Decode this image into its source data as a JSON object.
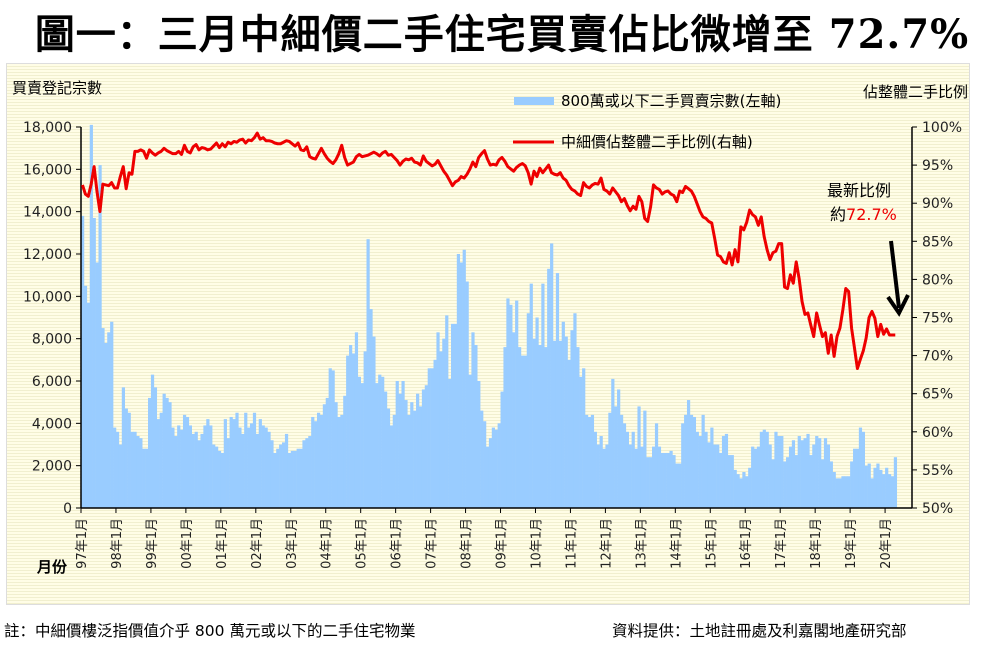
{
  "title": "圖一：三月中細價二手住宅買賣佔比微增至 72.7%",
  "footer": {
    "note": "註：中細價樓泛指價值介乎 800 萬元或以下的二手住宅物業",
    "source": "資料提供：土地註冊處及利嘉閣地產研究部"
  },
  "annotation": {
    "line1": "最新比例",
    "prefix": "約",
    "value": "72.7%"
  },
  "colors": {
    "bars": "#99ccff",
    "line": "#ee0000",
    "annotation_value": "#ee0000"
  },
  "chart_data": {
    "type": "bar+line",
    "left_axis_title": "買賣登記宗數",
    "right_axis_title": "佔整體二手比例",
    "x_axis_title": "月份",
    "left_ylim": [
      0,
      18000
    ],
    "right_ylim": [
      50,
      100
    ],
    "left_ticks": [
      "0",
      "2,000",
      "4,000",
      "6,000",
      "8,000",
      "10,000",
      "12,000",
      "14,000",
      "16,000",
      "18,000"
    ],
    "right_ticks": [
      "50%",
      "55%",
      "60%",
      "65%",
      "70%",
      "75%",
      "80%",
      "85%",
      "90%",
      "95%",
      "100%"
    ],
    "x_tick_labels": [
      "97年1月",
      "98年1月",
      "99年1月",
      "00年1月",
      "01年1月",
      "02年1月",
      "03年1月",
      "04年1月",
      "05年1月",
      "06年1月",
      "07年1月",
      "08年1月",
      "09年1月",
      "10年1月",
      "11年1月",
      "12年1月",
      "13年1月",
      "14年1月",
      "15年1月",
      "16年1月",
      "17年1月",
      "18年1月",
      "19年1月",
      "20年1月"
    ],
    "x_start": "1997-01",
    "x_end": "2020-04",
    "legend_position": "top-center",
    "series": [
      {
        "name": "800萬或以下二手買賣宗數(左軸)",
        "type": "bar",
        "axis": "left",
        "unit": "thousand",
        "values": [
          13.8,
          10.5,
          9.7,
          18.1,
          13.7,
          11.6,
          16.2,
          8.5,
          7.8,
          8.3,
          8.8,
          3.8,
          3.6,
          3.0,
          5.7,
          4.7,
          4.5,
          3.6,
          3.6,
          3.4,
          3.3,
          2.8,
          2.8,
          5.2,
          6.3,
          5.7,
          4.2,
          4.5,
          5.4,
          5.2,
          5.0,
          3.8,
          3.4,
          3.9,
          3.7,
          4.4,
          4.3,
          3.9,
          3.5,
          3.6,
          3.2,
          3.5,
          3.9,
          4.2,
          3.9,
          3.0,
          2.9,
          2.7,
          2.6,
          4.2,
          3.3,
          4.3,
          4.2,
          4.5,
          3.8,
          3.5,
          4.5,
          3.8,
          4.0,
          4.5,
          3.5,
          4.2,
          3.9,
          3.8,
          3.6,
          3.2,
          2.6,
          2.8,
          3.0,
          3.1,
          3.5,
          2.6,
          2.7,
          2.7,
          2.8,
          2.8,
          3.2,
          3.3,
          3.4,
          4.3,
          4.1,
          4.5,
          4.4,
          4.9,
          5.2,
          6.6,
          6.5,
          5.0,
          4.3,
          4.4,
          5.3,
          7.2,
          7.7,
          7.3,
          8.3,
          6.2,
          5.9,
          7.4,
          12.7,
          9.4,
          8.1,
          5.9,
          6.3,
          6.2,
          5.5,
          4.7,
          3.9,
          4.4,
          6.0,
          5.4,
          6.0,
          5.1,
          4.4,
          5.0,
          4.6,
          5.4,
          4.8,
          5.6,
          5.8,
          6.6,
          6.6,
          7.0,
          8.3,
          7.4,
          8.0,
          9.1,
          6.1,
          8.7,
          8.7,
          12.0,
          11.6,
          12.2,
          10.7,
          6.3,
          8.3,
          7.7,
          6.0,
          4.6,
          4.1,
          2.9,
          3.3,
          3.8,
          3.7,
          4.0,
          5.5,
          7.6,
          9.9,
          9.6,
          8.3,
          9.8,
          7.6,
          7.2,
          7.2,
          9.2,
          10.6,
          8.0,
          9.0,
          7.7,
          10.6,
          7.6,
          11.3,
          12.5,
          7.9,
          11.1,
          7.9,
          8.8,
          8.1,
          7.0,
          8.4,
          9.2,
          7.6,
          6.2,
          6.6,
          4.4,
          4.3,
          4.4,
          3.6,
          3.0,
          3.4,
          2.8,
          3.0,
          4.5,
          6.1,
          4.8,
          5.6,
          4.4,
          4.0,
          3.6,
          3.0,
          3.6,
          2.8,
          4.8,
          2.9,
          4.6,
          2.4,
          2.4,
          2.9,
          4.0,
          2.9,
          2.6,
          2.6,
          2.6,
          2.7,
          2.5,
          2.1,
          2.1,
          4.0,
          4.4,
          5.1,
          4.4,
          4.3,
          3.6,
          3.4,
          4.4,
          3.6,
          3.1,
          3.8,
          3.0,
          3.0,
          2.6,
          3.4,
          3.5,
          2.5,
          2.5,
          1.8,
          1.6,
          1.4,
          1.7,
          1.5,
          1.9,
          2.9,
          2.8,
          2.9,
          3.6,
          3.7,
          3.6,
          3.0,
          2.3,
          3.6,
          3.4,
          3.4,
          2.2,
          2.4,
          2.9,
          3.2,
          2.5,
          3.4,
          3.2,
          3.3,
          3.5,
          2.5,
          3.0,
          3.4,
          3.3,
          2.3,
          3.3,
          3.0,
          2.2,
          1.7,
          1.4,
          1.4,
          1.5,
          1.5,
          1.5,
          2.2,
          2.8,
          2.8,
          3.8,
          3.6,
          2.0,
          2.1,
          1.4,
          1.9,
          2.1,
          1.8,
          1.6,
          1.9,
          1.6,
          1.5,
          2.4
        ]
      },
      {
        "name": "中細價佔整體二手比例(右軸)",
        "type": "line",
        "axis": "right",
        "unit": "percent",
        "values": [
          92.4,
          91.2,
          90.9,
          92.5,
          94.8,
          91.5,
          88.9,
          92.5,
          92.4,
          92.3,
          92.7,
          92.0,
          92.0,
          93.5,
          94.8,
          91.9,
          94.0,
          93.8,
          96.8,
          96.8,
          97.0,
          96.8,
          95.9,
          97.0,
          96.6,
          96.3,
          96.6,
          96.8,
          97.2,
          96.9,
          96.7,
          96.5,
          96.5,
          96.8,
          96.4,
          97.6,
          96.8,
          96.6,
          97.4,
          97.7,
          97.0,
          97.3,
          97.2,
          97.0,
          97.1,
          97.5,
          97.9,
          97.3,
          97.8,
          97.4,
          98.0,
          97.8,
          98.1,
          98.0,
          98.3,
          98.4,
          97.9,
          98.3,
          98.2,
          98.6,
          99.2,
          98.4,
          98.6,
          98.2,
          98.2,
          98.1,
          97.9,
          97.8,
          97.8,
          98.0,
          98.2,
          98.1,
          97.8,
          97.5,
          97.9,
          97.0,
          96.9,
          97.4,
          96.1,
          95.9,
          95.8,
          96.5,
          97.2,
          96.5,
          95.9,
          95.5,
          95.2,
          95.7,
          96.5,
          97.6,
          96.0,
          95.0,
          95.2,
          95.4,
          96.1,
          96.4,
          96.1,
          96.2,
          96.3,
          96.5,
          96.7,
          96.5,
          96.2,
          96.6,
          96.8,
          96.3,
          96.4,
          96.0,
          95.6,
          95.0,
          95.5,
          95.8,
          95.7,
          95.9,
          95.4,
          95.3,
          95.0,
          96.2,
          95.5,
          95.2,
          94.9,
          95.1,
          95.6,
          94.9,
          94.2,
          93.7,
          93.0,
          92.3,
          92.8,
          93.0,
          93.5,
          93.3,
          93.8,
          94.5,
          95.4,
          94.8,
          96.0,
          96.5,
          96.9,
          95.8,
          95.0,
          95.1,
          95.0,
          95.7,
          96.0,
          95.5,
          94.8,
          94.5,
          94.2,
          94.7,
          95.0,
          95.2,
          94.9,
          94.0,
          92.5,
          94.2,
          93.5,
          94.6,
          94.0,
          94.5,
          95.0,
          94.0,
          93.8,
          93.7,
          94.0,
          93.3,
          93.0,
          92.3,
          91.8,
          91.6,
          91.2,
          91.0,
          92.7,
          92.2,
          92.0,
          92.4,
          92.6,
          92.5,
          93.3,
          91.8,
          91.6,
          91.2,
          92.0,
          91.5,
          91.0,
          90.2,
          90.6,
          89.7,
          89.0,
          89.6,
          89.2,
          90.9,
          90.2,
          88.0,
          87.6,
          89.5,
          92.4,
          92.0,
          91.8,
          91.2,
          91.5,
          91.6,
          91.2,
          91.0,
          90.2,
          91.6,
          91.4,
          92.2,
          91.9,
          91.6,
          90.9,
          89.9,
          88.9,
          88.2,
          88.0,
          87.6,
          87.4,
          85.4,
          83.2,
          83.0,
          82.3,
          82.1,
          83.5,
          81.9,
          83.9,
          82.3,
          86.9,
          86.5,
          87.5,
          89.1,
          88.5,
          88.2,
          87.1,
          88.2,
          85.6,
          83.9,
          82.6,
          83.5,
          83.7,
          84.7,
          84.7,
          79.0,
          78.8,
          80.6,
          79.5,
          82.3,
          80.1,
          77.1,
          75.4,
          75.6,
          74.0,
          72.5,
          75.6,
          74.0,
          72.5,
          73.0,
          70.3,
          72.7,
          69.9,
          72.5,
          73.6,
          76.0,
          78.8,
          78.4,
          73.6,
          71.0,
          68.3,
          69.5,
          70.6,
          72.3,
          75.0,
          75.8,
          74.9,
          72.5,
          74.1,
          72.8,
          73.5,
          72.7,
          72.7,
          72.7
        ]
      }
    ]
  }
}
